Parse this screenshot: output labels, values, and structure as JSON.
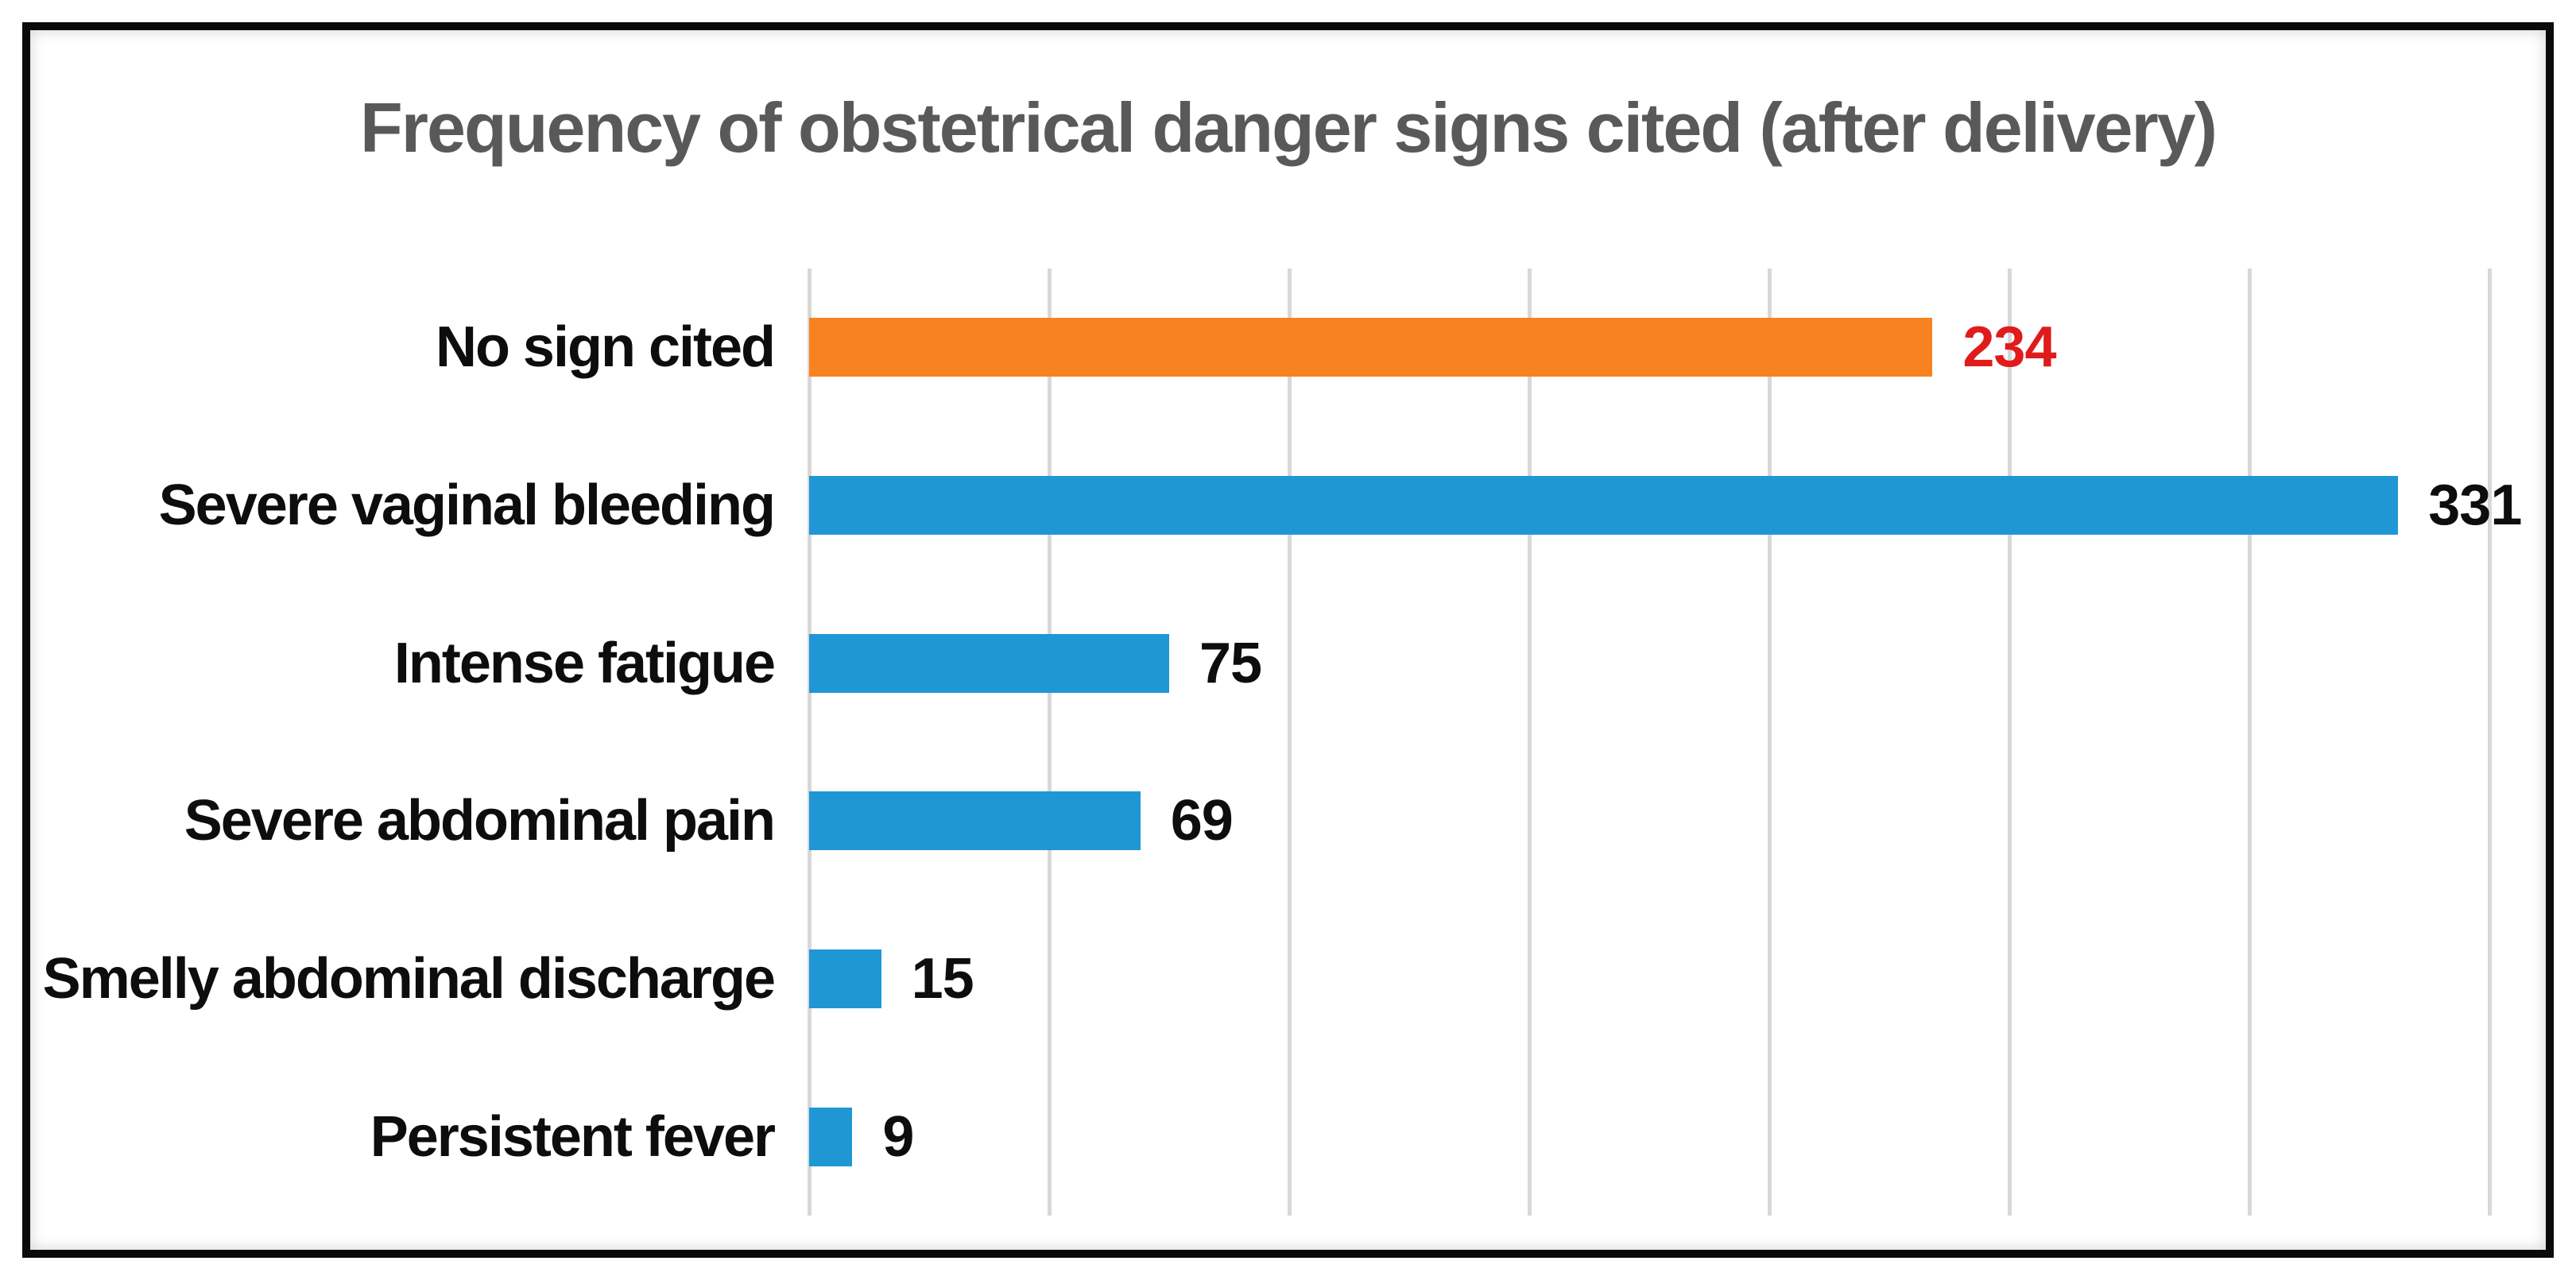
{
  "title": "Frequency of obstetrical danger signs cited (after delivery)",
  "colors": {
    "title_text": "#595959",
    "default_bar": "#1f97d4",
    "highlight_bar": "#f8821f",
    "highlight_value": "#e01b1c",
    "value_text": "#0d0d0d",
    "gridline": "#d8d8d8",
    "frame_border": "#0a0a0a"
  },
  "chart_data": {
    "type": "bar",
    "orientation": "horizontal",
    "title": "Frequency of obstetrical danger signs cited (after delivery)",
    "categories": [
      "No sign cited",
      "Severe vaginal bleeding",
      "Intense fatigue",
      "Severe abdominal pain",
      "Smelly abdominal discharge",
      "Persistent fever"
    ],
    "values": [
      234,
      331,
      75,
      69,
      15,
      9
    ],
    "xlabel": "",
    "ylabel": "",
    "xlim": [
      0,
      350
    ],
    "gridline_interval": 50,
    "grid": true,
    "axis_tick_labels_visible": false,
    "legend": "none",
    "rows": [
      {
        "label": "No sign cited",
        "value": 234,
        "bar_color": "#f8821f",
        "value_color": "#e01b1c"
      },
      {
        "label": "Severe vaginal bleeding",
        "value": 331,
        "bar_color": "#1f97d4",
        "value_color": "#0d0d0d"
      },
      {
        "label": "Intense fatigue",
        "value": 75,
        "bar_color": "#1f97d4",
        "value_color": "#0d0d0d"
      },
      {
        "label": "Severe abdominal pain",
        "value": 69,
        "bar_color": "#1f97d4",
        "value_color": "#0d0d0d"
      },
      {
        "label": "Smelly abdominal discharge",
        "value": 15,
        "bar_color": "#1f97d4",
        "value_color": "#0d0d0d"
      },
      {
        "label": "Persistent fever",
        "value": 9,
        "bar_color": "#1f97d4",
        "value_color": "#0d0d0d"
      }
    ]
  }
}
